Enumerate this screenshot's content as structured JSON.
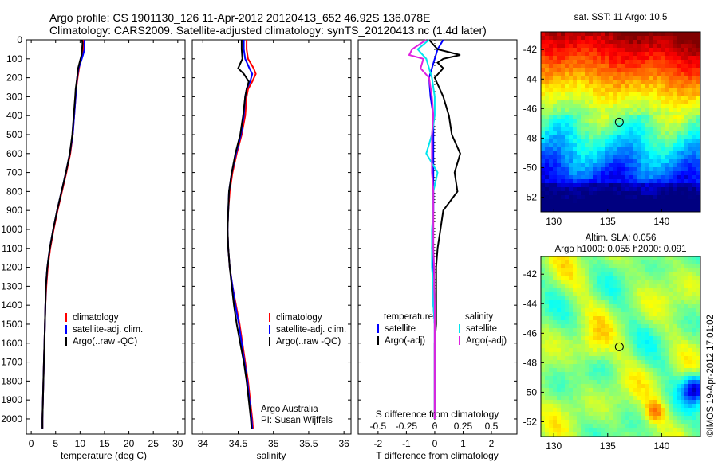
{
  "header": {
    "line1": "Argo profile: CS 1901130_126 11-Apr-2012 20120413_652 46.92S 136.078E",
    "line2": "Climatology: CARS2009. Satellite-adjusted climatology: synTS_20120413.nc (1.4d later)"
  },
  "colors": {
    "climatology": "#ff0000",
    "satellite": "#0000ff",
    "argo": "#000000",
    "sal_satellite": "#00e5ee",
    "sal_argo": "#e020e0"
  },
  "depth_axis": {
    "ticks": [
      0,
      100,
      200,
      300,
      400,
      500,
      600,
      700,
      800,
      900,
      1000,
      1100,
      1200,
      1300,
      1400,
      1500,
      1600,
      1700,
      1800,
      1900,
      2000
    ],
    "range": [
      0,
      2080
    ]
  },
  "chart_data": [
    {
      "type": "line",
      "id": "temperature",
      "xlabel": "temperature (deg C)",
      "xlim": [
        -1,
        31.5
      ],
      "xticks": [
        0,
        5,
        10,
        15,
        20,
        25,
        30
      ],
      "legend": [
        "climatology",
        "satellite-adj. clim.",
        "Argo(..raw -QC)"
      ],
      "series": [
        {
          "name": "climatology",
          "color": "#ff0000",
          "depth": [
            0,
            20,
            50,
            80,
            120,
            150,
            200,
            260,
            300,
            400,
            500,
            600,
            700,
            800,
            900,
            1000,
            1100,
            1200,
            1300,
            1400,
            1500,
            1600,
            1700,
            1800,
            1900,
            2000,
            2050
          ],
          "values": [
            10.6,
            10.6,
            10.6,
            10.4,
            10.0,
            9.8,
            9.5,
            9.2,
            9.1,
            8.8,
            8.5,
            8.0,
            7.2,
            6.3,
            5.4,
            4.6,
            3.9,
            3.4,
            3.1,
            2.9,
            2.8,
            2.7,
            2.6,
            2.5,
            2.4,
            2.3,
            2.3
          ]
        },
        {
          "name": "satellite-adj. clim.",
          "color": "#0000ff",
          "depth": [
            0,
            20,
            50,
            80,
            120,
            150,
            200,
            260,
            300,
            400,
            500,
            600,
            700,
            800,
            900,
            1000,
            1100,
            1200,
            1300,
            1400,
            1500,
            1600,
            1700,
            1800,
            1900,
            2000,
            2050
          ],
          "values": [
            10.9,
            10.9,
            10.9,
            10.6,
            10.1,
            9.7,
            9.4,
            9.2,
            9.1,
            8.8,
            8.5,
            7.9,
            7.1,
            6.2,
            5.3,
            4.5,
            3.8,
            3.3,
            3.0,
            2.9,
            2.8,
            2.7,
            2.6,
            2.5,
            2.4,
            2.3,
            2.3
          ]
        },
        {
          "name": "Argo(..raw -QC)",
          "color": "#000000",
          "depth": [
            0,
            20,
            50,
            80,
            120,
            150,
            200,
            260,
            300,
            400,
            500,
            600,
            700,
            800,
            900,
            1000,
            1100,
            1200,
            1300,
            1400,
            1500,
            1600,
            1700,
            1800,
            1900,
            2000,
            2050
          ],
          "values": [
            10.4,
            10.5,
            10.4,
            10.3,
            9.9,
            9.6,
            9.4,
            9.1,
            9.0,
            8.7,
            8.4,
            7.9,
            7.1,
            6.2,
            5.3,
            4.5,
            3.8,
            3.3,
            3.0,
            2.9,
            2.8,
            2.7,
            2.6,
            2.5,
            2.4,
            2.3,
            2.3
          ]
        }
      ]
    },
    {
      "type": "line",
      "id": "salinity",
      "xlabel": "salinity",
      "xlim": [
        33.85,
        36.1
      ],
      "xticks": [
        34,
        34.5,
        35,
        35.5,
        36
      ],
      "legend": [
        "climatology",
        "satellite-adj. clim.",
        "Argo(..raw -QC)"
      ],
      "annotation": [
        "Argo Australia",
        "PI: Susan Wijffels"
      ],
      "series": [
        {
          "name": "climatology",
          "color": "#ff0000",
          "depth": [
            0,
            50,
            100,
            150,
            180,
            220,
            260,
            300,
            400,
            500,
            600,
            700,
            800,
            900,
            1000,
            1100,
            1200,
            1300,
            1400,
            1500,
            1600,
            1700,
            1800,
            1900,
            2000,
            2050
          ],
          "values": [
            34.62,
            34.62,
            34.64,
            34.72,
            34.75,
            34.7,
            34.64,
            34.62,
            34.6,
            34.55,
            34.48,
            34.42,
            34.38,
            34.36,
            34.35,
            34.36,
            34.38,
            34.42,
            34.47,
            34.52,
            34.56,
            34.6,
            34.64,
            34.67,
            34.7,
            34.71
          ]
        },
        {
          "name": "satellite-adj. clim.",
          "color": "#0000ff",
          "depth": [
            0,
            50,
            100,
            150,
            180,
            220,
            260,
            300,
            400,
            500,
            600,
            700,
            800,
            900,
            1000,
            1100,
            1200,
            1300,
            1400,
            1500,
            1600,
            1700,
            1800,
            1900,
            2000,
            2050
          ],
          "values": [
            34.58,
            34.58,
            34.6,
            34.66,
            34.7,
            34.67,
            34.62,
            34.6,
            34.58,
            34.54,
            34.47,
            34.41,
            34.37,
            34.36,
            34.35,
            34.36,
            34.38,
            34.42,
            34.46,
            34.51,
            34.55,
            34.59,
            34.63,
            34.66,
            34.69,
            34.7
          ]
        },
        {
          "name": "Argo(..raw -QC)",
          "color": "#000000",
          "depth": [
            0,
            50,
            100,
            150,
            180,
            220,
            260,
            300,
            400,
            500,
            600,
            700,
            800,
            900,
            1000,
            1100,
            1200,
            1300,
            1400,
            1500,
            1600,
            1700,
            1800,
            1900,
            2000,
            2050
          ],
          "values": [
            34.55,
            34.55,
            34.56,
            34.5,
            34.58,
            34.65,
            34.62,
            34.6,
            34.57,
            34.53,
            34.46,
            34.41,
            34.37,
            34.36,
            34.35,
            34.36,
            34.38,
            34.41,
            34.44,
            34.48,
            34.53,
            34.58,
            34.62,
            34.65,
            34.68,
            34.69
          ]
        }
      ]
    },
    {
      "type": "line",
      "id": "difference",
      "xlabel": "T difference from climatology",
      "xlabel2": "S difference from climatology",
      "xlim": [
        -2.7,
        2.9
      ],
      "xticks": [
        -2,
        -1,
        0,
        1,
        2
      ],
      "xticks_top": [
        -0.5,
        -0.25,
        0,
        0.25,
        0.5
      ],
      "legend_temp_header": "temperature",
      "legend_sal_header": "salinity",
      "legend": [
        "satellite",
        "Argo(-adj)",
        "satellite",
        "Argo(-adj)"
      ],
      "series": [
        {
          "name": "satellite",
          "group": "temperature",
          "color": "#0000ff",
          "depth": [
            0,
            50,
            100,
            150,
            200,
            300,
            400,
            500,
            600,
            700,
            800,
            900,
            1000,
            1100,
            1200,
            1300,
            1400,
            1500,
            1600,
            1700,
            1800,
            1900,
            2000
          ],
          "values": [
            0.3,
            0.1,
            0.0,
            -0.1,
            -0.2,
            -0.15,
            -0.05,
            -0.05,
            -0.05,
            -0.05,
            -0.05,
            -0.05,
            -0.08,
            -0.1,
            -0.05,
            -0.05,
            -0.05,
            0.0,
            0.0,
            0.0,
            0.0,
            0.0,
            0.0
          ]
        },
        {
          "name": "Argo(-adj)",
          "group": "temperature",
          "color": "#000000",
          "depth": [
            0,
            50,
            80,
            100,
            120,
            150,
            200,
            300,
            400,
            500,
            600,
            700,
            800,
            900,
            1000,
            1100,
            1200,
            1300,
            1400,
            1500,
            1600,
            1700,
            1800,
            1900,
            2000
          ],
          "values": [
            -0.2,
            0.1,
            0.9,
            0.3,
            0.1,
            0.3,
            0.0,
            0.3,
            0.5,
            0.6,
            0.9,
            0.7,
            0.8,
            0.3,
            0.2,
            0.1,
            0.05,
            0.05,
            0.05,
            0.05,
            0.0,
            0.0,
            0.0,
            0.0,
            0.0
          ]
        },
        {
          "name": "satellite",
          "group": "salinity",
          "color": "#00e5ee",
          "depth": [
            0,
            50,
            100,
            150,
            200,
            300,
            400,
            500,
            600,
            700,
            800,
            900,
            1000,
            1100,
            1200,
            1300,
            1400,
            1500,
            1600,
            1700,
            1800,
            1900,
            2000
          ],
          "values": [
            -0.2,
            -0.6,
            -0.3,
            -0.2,
            -0.1,
            0.0,
            0.0,
            -0.1,
            -0.3,
            0.1,
            -0.05,
            -0.05,
            -0.1,
            -0.1,
            -0.1,
            -0.05,
            -0.05,
            0.0,
            0.0,
            0.0,
            0.0,
            0.0,
            0.0
          ]
        },
        {
          "name": "Argo(-adj)",
          "group": "salinity",
          "color": "#e020e0",
          "depth": [
            0,
            50,
            80,
            100,
            150,
            200,
            300,
            400,
            500,
            600,
            700,
            800,
            900,
            1000,
            1100,
            1200,
            1300,
            1400,
            1500,
            1600,
            1700,
            1800,
            1900,
            2000
          ],
          "values": [
            -0.3,
            -0.8,
            -0.9,
            -0.4,
            -0.5,
            -0.2,
            -0.1,
            -0.05,
            -0.1,
            -0.1,
            -0.1,
            -0.05,
            -0.05,
            -0.05,
            -0.05,
            -0.02,
            -0.02,
            0.0,
            0.0,
            0.0,
            0.0,
            0.0,
            0.0,
            0.0
          ]
        }
      ]
    },
    {
      "type": "heatmap",
      "id": "sst_map",
      "title": "sat. SST: 11  Argo: 10.5",
      "xlim": [
        128.8,
        143.6
      ],
      "ylim": [
        -53,
        -40.8
      ],
      "xticks": [
        130,
        135,
        140
      ],
      "yticks": [
        -42,
        -44,
        -46,
        -48,
        -50,
        -52
      ],
      "marker": {
        "lon": 136.078,
        "lat": -46.92
      }
    },
    {
      "type": "heatmap",
      "id": "sla_map",
      "title": "Altim. SLA: 0.056",
      "subtitle": "Argo h1000: 0.055  h2000: 0.091",
      "xlim": [
        128.8,
        143.6
      ],
      "ylim": [
        -53,
        -40.8
      ],
      "xticks": [
        130,
        135,
        140
      ],
      "yticks": [
        -42,
        -44,
        -46,
        -48,
        -50,
        -52
      ],
      "marker": {
        "lon": 136.078,
        "lat": -46.92
      }
    }
  ],
  "footer": {
    "side_text": "©IMOS 19-Apr-2012 17:01:02"
  }
}
